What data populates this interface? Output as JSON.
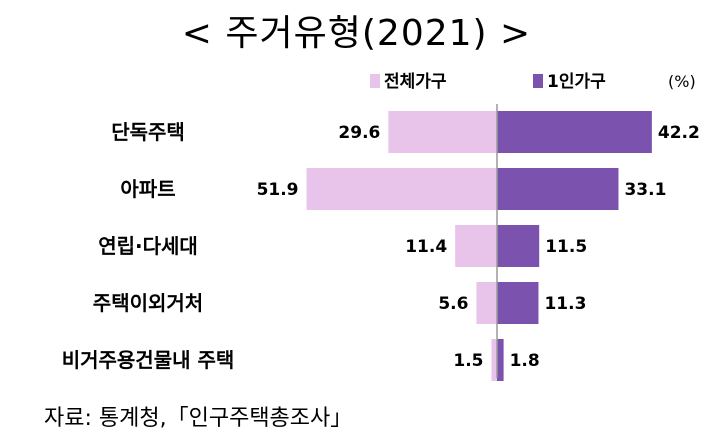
{
  "chart_data": {
    "type": "bar",
    "title": "< 주거유형(2021) >",
    "unit": "(%)",
    "categories": [
      "단독주택",
      "아파트",
      "연립·다세대",
      "주택이외거처",
      "비거주용건물내 주택"
    ],
    "series": [
      {
        "name": "전체가구",
        "values": [
          29.6,
          51.9,
          11.4,
          5.6,
          1.5
        ],
        "color": "#E8C3EA"
      },
      {
        "name": "1인가구",
        "values": [
          42.2,
          33.1,
          11.5,
          11.3,
          1.8
        ],
        "color": "#7B52AE"
      }
    ],
    "value_labels": {
      "left": [
        "29.6",
        "51.9",
        "11.4",
        "5.6",
        "1.5"
      ],
      "right": [
        "42.2",
        "33.1",
        "11.5",
        "11.3",
        "1.8"
      ]
    },
    "legend_position": "top-right",
    "grid": false
  },
  "source": "자료: 통계청,「인구주택총조사」"
}
